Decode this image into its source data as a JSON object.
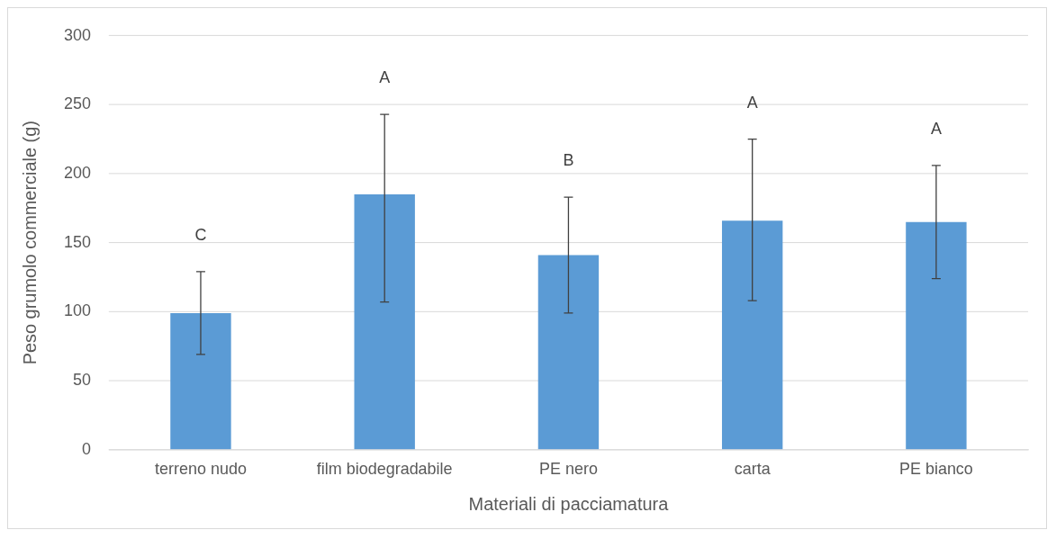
{
  "chart_data": {
    "type": "bar",
    "xlabel": "Materiali di pacciamatura",
    "ylabel": "Peso grumolo commerciale (g)",
    "categories": [
      "terreno nudo",
      "film biodegradabile",
      "PE nero",
      "carta",
      "PE bianco"
    ],
    "values": [
      99,
      185,
      141,
      166,
      165
    ],
    "errors": [
      [
        69,
        129
      ],
      [
        107,
        243
      ],
      [
        99,
        183
      ],
      [
        108,
        225
      ],
      [
        124,
        206
      ]
    ],
    "color": "#5b9bd5",
    "ylim": [
      0,
      300
    ],
    "yticks": [
      0,
      50,
      100,
      150,
      200,
      250,
      300
    ],
    "grid": "y",
    "legend": false,
    "annotations": [
      "C",
      "A",
      "B",
      "A",
      "A"
    ]
  }
}
